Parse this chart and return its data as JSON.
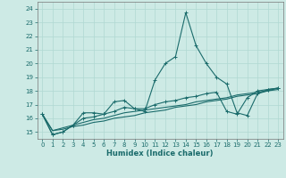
{
  "xlabel": "Humidex (Indice chaleur)",
  "background_color": "#cdeae5",
  "grid_color": "#b0d8d2",
  "line_color": "#1a6b6b",
  "x_values": [
    0,
    1,
    2,
    3,
    4,
    5,
    6,
    7,
    8,
    9,
    10,
    11,
    12,
    13,
    14,
    15,
    16,
    17,
    18,
    19,
    20,
    21,
    22,
    23
  ],
  "line1_y": [
    16.3,
    14.8,
    15.0,
    15.5,
    16.4,
    16.4,
    16.3,
    17.2,
    17.3,
    16.7,
    16.5,
    18.8,
    20.0,
    20.5,
    23.7,
    21.3,
    20.0,
    19.0,
    18.5,
    16.4,
    16.2,
    17.8,
    18.1,
    18.2
  ],
  "line2_y": [
    16.3,
    14.8,
    15.0,
    15.5,
    16.0,
    16.1,
    16.3,
    16.5,
    16.8,
    16.7,
    16.7,
    17.0,
    17.2,
    17.3,
    17.5,
    17.6,
    17.8,
    17.9,
    16.5,
    16.3,
    17.5,
    18.0,
    18.1,
    18.2
  ],
  "line3_y": [
    16.3,
    15.1,
    15.3,
    15.5,
    15.7,
    15.9,
    16.0,
    16.2,
    16.4,
    16.5,
    16.6,
    16.7,
    16.8,
    16.9,
    17.0,
    17.2,
    17.3,
    17.4,
    17.5,
    17.7,
    17.8,
    17.9,
    18.0,
    18.2
  ],
  "line4_y": [
    16.3,
    15.1,
    15.2,
    15.4,
    15.5,
    15.7,
    15.8,
    16.0,
    16.1,
    16.2,
    16.4,
    16.5,
    16.6,
    16.8,
    16.9,
    17.0,
    17.2,
    17.3,
    17.4,
    17.6,
    17.7,
    17.8,
    18.0,
    18.1
  ],
  "xlim": [
    -0.5,
    23.5
  ],
  "ylim": [
    14.5,
    24.5
  ],
  "yticks": [
    15,
    16,
    17,
    18,
    19,
    20,
    21,
    22,
    23,
    24
  ],
  "xticks": [
    0,
    1,
    2,
    3,
    4,
    5,
    6,
    7,
    8,
    9,
    10,
    11,
    12,
    13,
    14,
    15,
    16,
    17,
    18,
    19,
    20,
    21,
    22,
    23
  ]
}
